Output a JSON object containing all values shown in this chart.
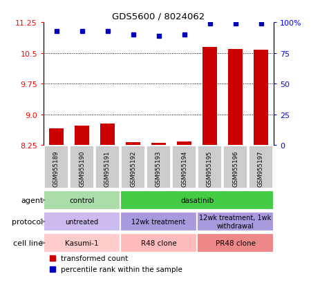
{
  "title": "GDS5600 / 8024062",
  "samples": [
    "GSM955189",
    "GSM955190",
    "GSM955191",
    "GSM955192",
    "GSM955193",
    "GSM955194",
    "GSM955195",
    "GSM955196",
    "GSM955197"
  ],
  "bar_values": [
    8.65,
    8.72,
    8.78,
    8.32,
    8.3,
    8.33,
    10.65,
    10.6,
    10.58
  ],
  "percentile_values": [
    93,
    93,
    93,
    90,
    89,
    90,
    99,
    99,
    99
  ],
  "ylim_left": [
    8.25,
    11.25
  ],
  "ylim_right": [
    0,
    100
  ],
  "yticks_left": [
    8.25,
    9.0,
    9.75,
    10.5,
    11.25
  ],
  "yticks_right": [
    0,
    25,
    50,
    75,
    100
  ],
  "bar_color": "#cc0000",
  "dot_color": "#0000bb",
  "agent_groups": [
    {
      "label": "control",
      "start": 0,
      "end": 3,
      "color": "#aaddaa"
    },
    {
      "label": "dasatinib",
      "start": 3,
      "end": 9,
      "color": "#44cc44"
    }
  ],
  "protocol_groups": [
    {
      "label": "untreated",
      "start": 0,
      "end": 3,
      "color": "#ccbbee"
    },
    {
      "label": "12wk treatment",
      "start": 3,
      "end": 6,
      "color": "#aa99dd"
    },
    {
      "label": "12wk treatment, 1wk\nwithdrawal",
      "start": 6,
      "end": 9,
      "color": "#aa99dd"
    }
  ],
  "cellline_groups": [
    {
      "label": "Kasumi-1",
      "start": 0,
      "end": 3,
      "color": "#ffcccc"
    },
    {
      "label": "R48 clone",
      "start": 3,
      "end": 6,
      "color": "#ffbbbb"
    },
    {
      "label": "PR48 clone",
      "start": 6,
      "end": 9,
      "color": "#ee8888"
    }
  ],
  "row_labels": [
    "agent",
    "protocol",
    "cell line"
  ],
  "legend_items": [
    {
      "color": "#cc0000",
      "label": "transformed count"
    },
    {
      "color": "#0000bb",
      "label": "percentile rank within the sample"
    }
  ],
  "grid_lines": [
    9.0,
    9.75,
    10.5
  ],
  "sample_box_color": "#cccccc"
}
